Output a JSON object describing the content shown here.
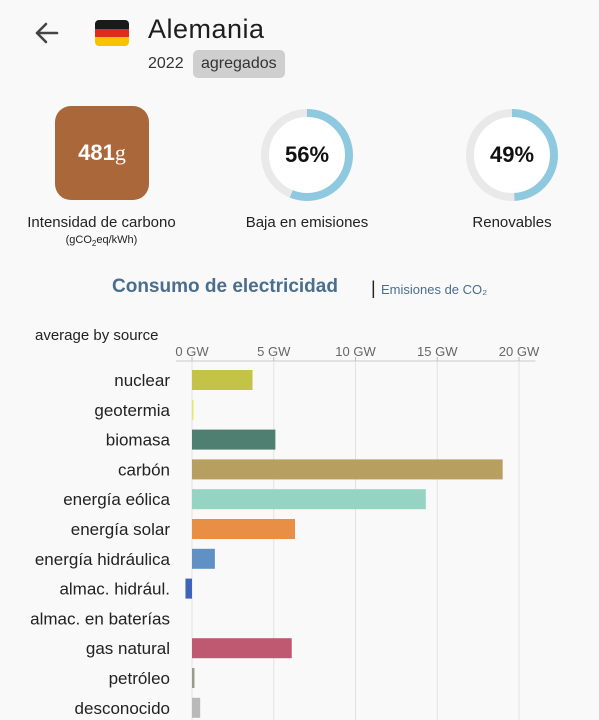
{
  "header": {
    "country": "Alemania",
    "year": "2022",
    "aggregate_badge": "agregados",
    "back_icon": "back-arrow-icon",
    "flag_icon": "germany-flag-icon",
    "flag_colors": [
      "#1a1a1a",
      "#dd2b1c",
      "#f5c400"
    ]
  },
  "stats": {
    "carbon": {
      "value": "481",
      "unit": "g",
      "label": "Intensidad de carbono",
      "sublabel_pre": "(gCO",
      "sublabel_sub": "2",
      "sublabel_post": "eq/kWh)",
      "color": "#a9673a"
    },
    "low_emission": {
      "value": "56%",
      "fraction": 0.56,
      "label": "Baja en emisiones"
    },
    "renewables": {
      "value": "49%",
      "fraction": 0.49,
      "label": "Renovables"
    },
    "ring_color": "#8ec9e0",
    "ring_track_color": "#e9e9e9"
  },
  "tabs": {
    "active": "Consumo de electricidad",
    "separator": "|",
    "inactive": "Emisiones de CO₂"
  },
  "chart_caption": "average by source",
  "chart_data": {
    "type": "bar",
    "orientation": "horizontal",
    "xlim": [
      0,
      21
    ],
    "ticks": [
      0,
      5,
      10,
      15,
      20
    ],
    "tick_labels": [
      "0 GW",
      "5 GW",
      "10 GW",
      "15 GW",
      "20 GW"
    ],
    "grid": true,
    "categories": [
      "nuclear",
      "geotermia",
      "biomasa",
      "carbón",
      "energía eólica",
      "energía solar",
      "energía hidráulica",
      "almac. hidrául.",
      "almac. en baterías",
      "gas natural",
      "petróleo",
      "desconocido"
    ],
    "values": [
      3.7,
      0.02,
      5.1,
      19.0,
      14.3,
      6.3,
      1.4,
      -0.4,
      0.0,
      6.1,
      0.15,
      0.5
    ],
    "colors": [
      "#c3c447",
      "#e6e66a",
      "#4f7f71",
      "#b79f60",
      "#95d4c3",
      "#e88f45",
      "#6090c4",
      "#3f63b8",
      "#9a7fc7",
      "#bf5871",
      "#9a9a8a",
      "#b9b9b9"
    ]
  }
}
